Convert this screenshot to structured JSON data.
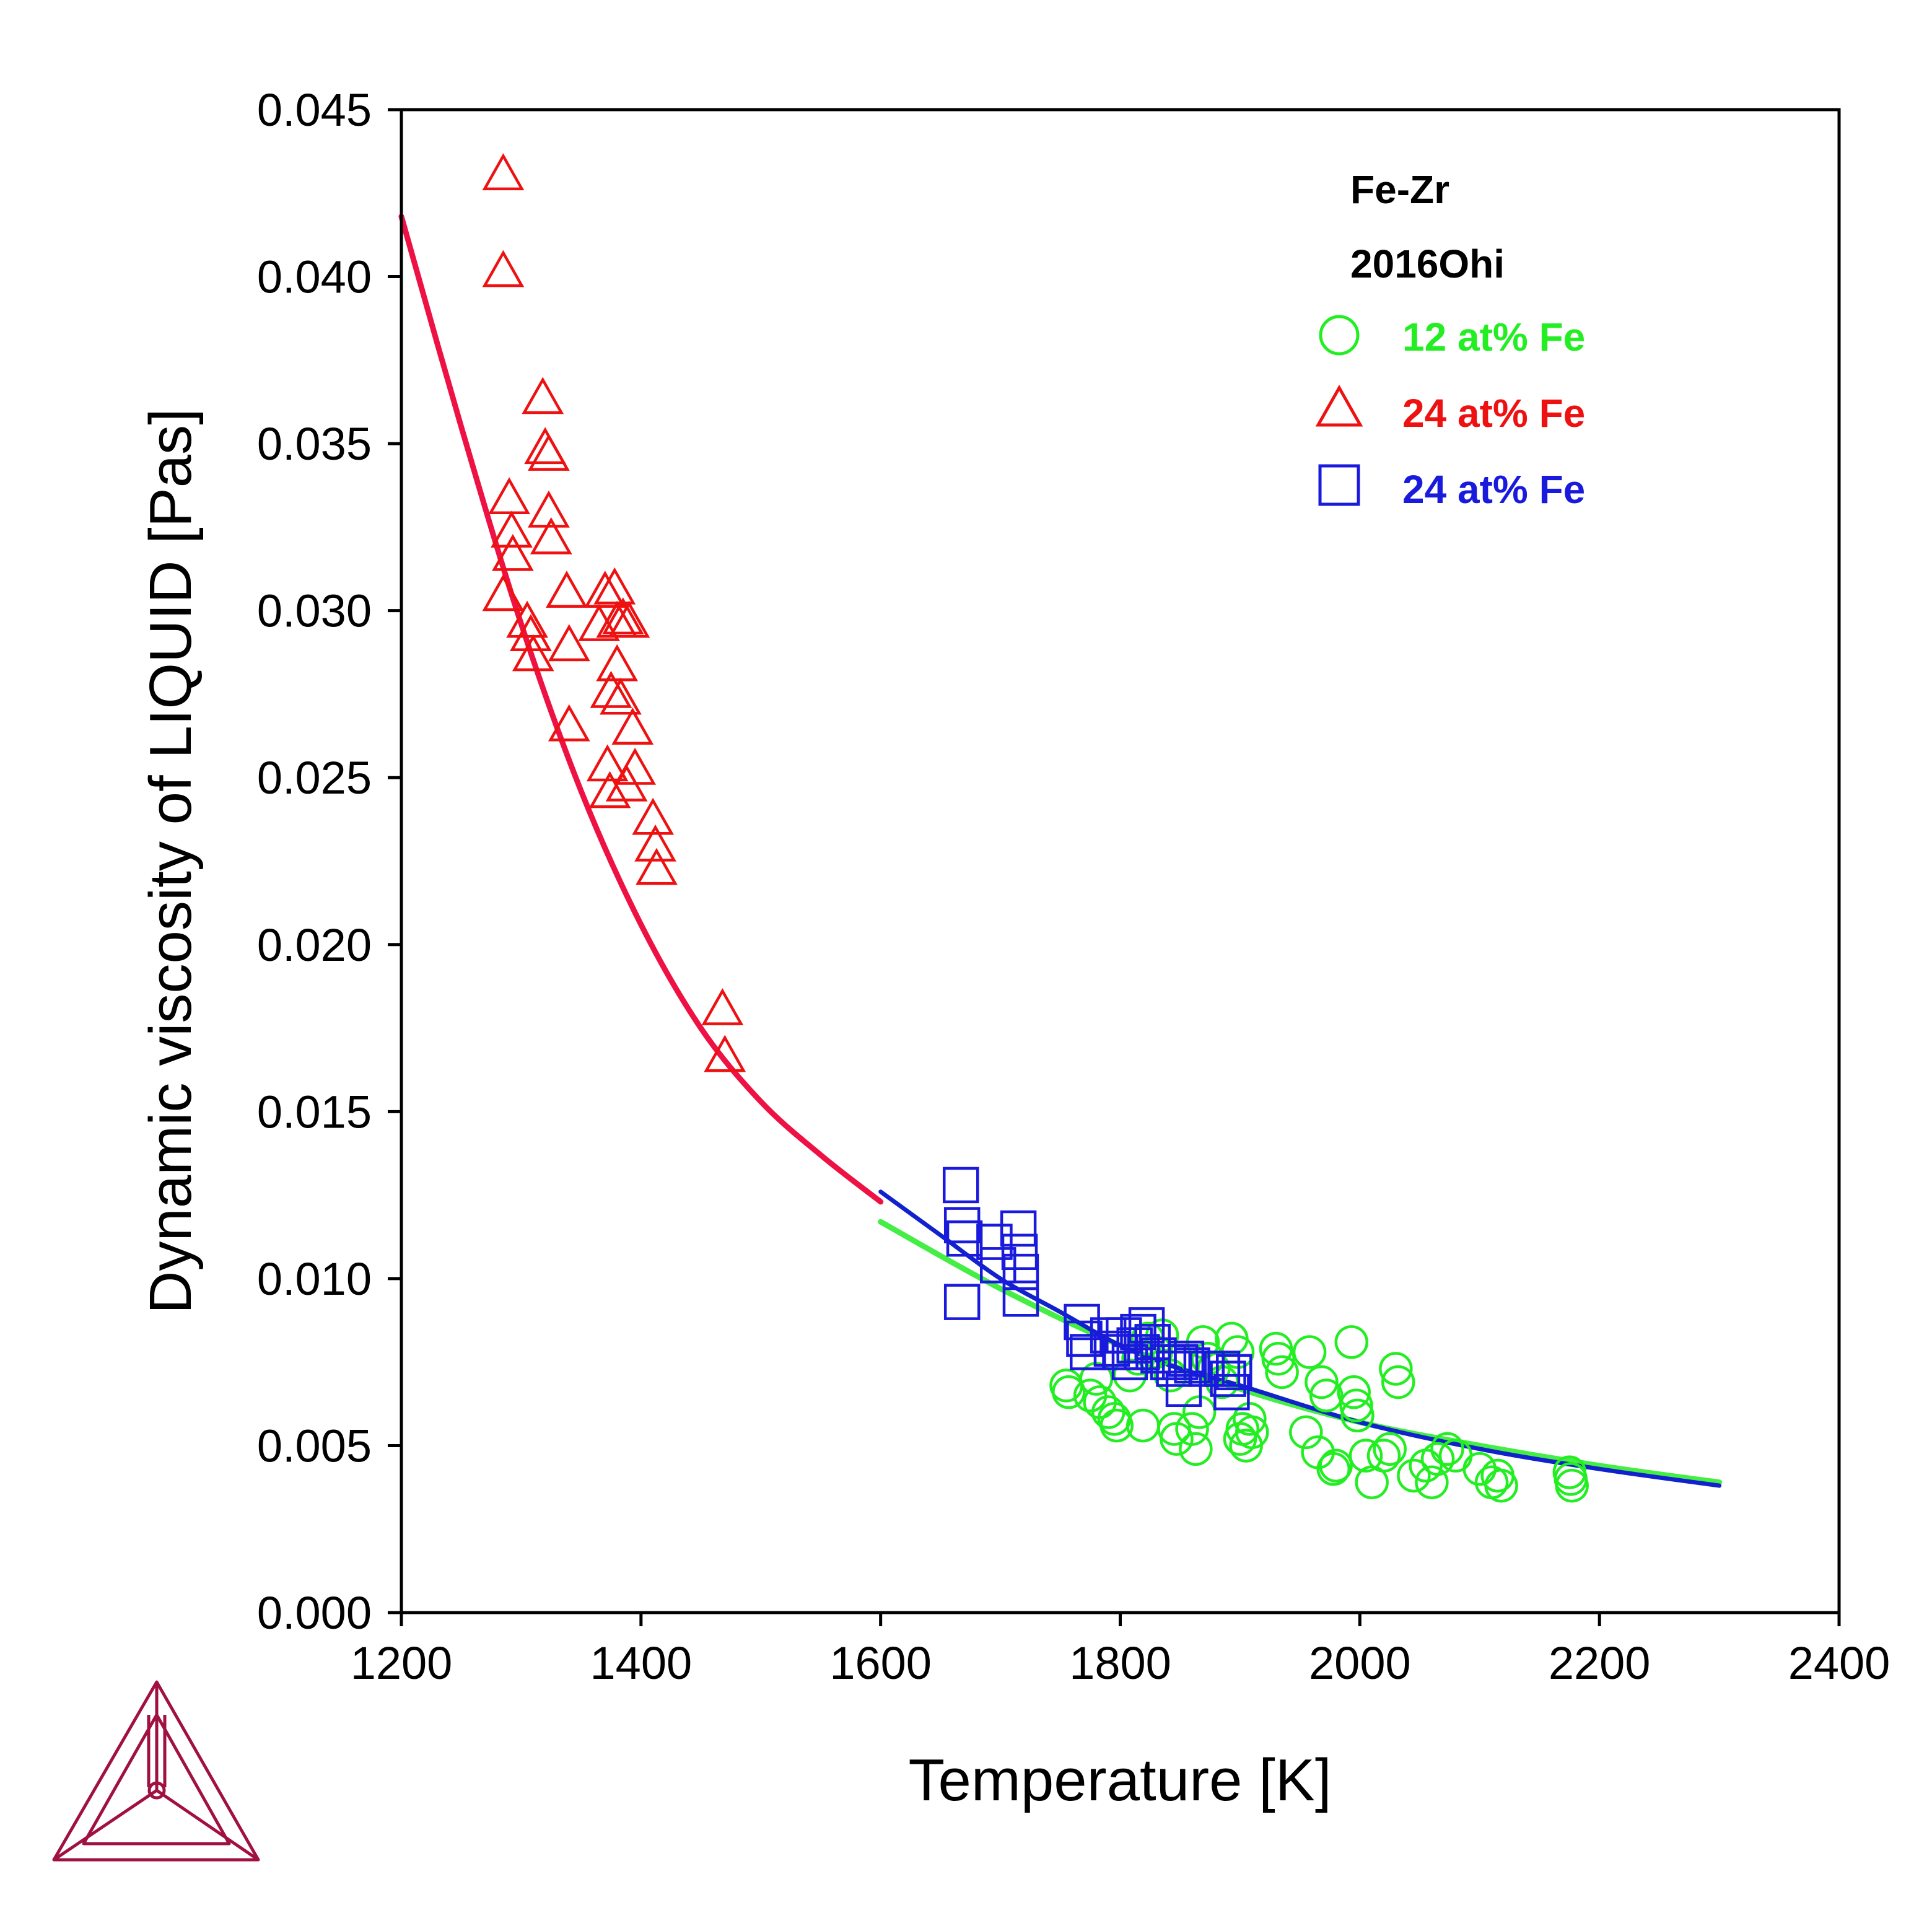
{
  "chart_data": {
    "type": "scatter",
    "xlabel": "Temperature [K]",
    "ylabel": "Dynamic viscosity of LIQUID [Pas]",
    "xlim": [
      1200,
      2400
    ],
    "ylim": [
      0,
      0.045
    ],
    "xticks": [
      "1200",
      "1400",
      "1600",
      "1800",
      "2000",
      "2200",
      "2400"
    ],
    "yticks": [
      "0.000",
      "0.005",
      "0.010",
      "0.015",
      "0.020",
      "0.025",
      "0.030",
      "0.035",
      "0.040",
      "0.045"
    ],
    "grid": false,
    "legend_position": "top-right",
    "legend_title": [
      "Fe-Zr",
      "2016Ohi"
    ],
    "series": [
      {
        "name": "12 at% Fe",
        "marker": "circle",
        "color": "#22ee22",
        "points": [
          [
            1755,
            0.0068
          ],
          [
            1757,
            0.0066
          ],
          [
            1775,
            0.0065
          ],
          [
            1780,
            0.007
          ],
          [
            1783,
            0.0063
          ],
          [
            1790,
            0.006
          ],
          [
            1795,
            0.0058
          ],
          [
            1797,
            0.0056
          ],
          [
            1808,
            0.0071
          ],
          [
            1815,
            0.0076
          ],
          [
            1819,
            0.0056
          ],
          [
            1823,
            0.0082
          ],
          [
            1830,
            0.0078
          ],
          [
            1835,
            0.0083
          ],
          [
            1842,
            0.0071
          ],
          [
            1845,
            0.0055
          ],
          [
            1847,
            0.0052
          ],
          [
            1860,
            0.0055
          ],
          [
            1863,
            0.0049
          ],
          [
            1866,
            0.006
          ],
          [
            1869,
            0.0081
          ],
          [
            1873,
            0.0076
          ],
          [
            1878,
            0.0073
          ],
          [
            1885,
            0.0069
          ],
          [
            1893,
            0.0082
          ],
          [
            1898,
            0.0078
          ],
          [
            1900,
            0.0052
          ],
          [
            1902,
            0.0055
          ],
          [
            1905,
            0.005
          ],
          [
            1908,
            0.0058
          ],
          [
            1910,
            0.0054
          ],
          [
            1930,
            0.0079
          ],
          [
            1932,
            0.0076
          ],
          [
            1935,
            0.0072
          ],
          [
            1955,
            0.0054
          ],
          [
            1958,
            0.0078
          ],
          [
            1965,
            0.0048
          ],
          [
            1968,
            0.0069
          ],
          [
            1972,
            0.0065
          ],
          [
            1978,
            0.0043
          ],
          [
            1980,
            0.0044
          ],
          [
            1993,
            0.0081
          ],
          [
            1995,
            0.0066
          ],
          [
            1997,
            0.0062
          ],
          [
            1998,
            0.0059
          ],
          [
            2005,
            0.0047
          ],
          [
            2010,
            0.0039
          ],
          [
            2020,
            0.0047
          ],
          [
            2025,
            0.0049
          ],
          [
            2030,
            0.0073
          ],
          [
            2032,
            0.0069
          ],
          [
            2045,
            0.0041
          ],
          [
            2055,
            0.0044
          ],
          [
            2060,
            0.0039
          ],
          [
            2065,
            0.0046
          ],
          [
            2073,
            0.0049
          ],
          [
            2080,
            0.0047
          ],
          [
            2100,
            0.0043
          ],
          [
            2110,
            0.0039
          ],
          [
            2115,
            0.0041
          ],
          [
            2118,
            0.0038
          ],
          [
            2175,
            0.0042
          ],
          [
            2176,
            0.004
          ],
          [
            2177,
            0.0038
          ]
        ]
      },
      {
        "name": "24 at% Fe",
        "marker": "triangle",
        "color": "#ee1111",
        "points": [
          [
            1285,
            0.043
          ],
          [
            1285,
            0.0401
          ],
          [
            1285,
            0.0304
          ],
          [
            1290,
            0.0333
          ],
          [
            1292,
            0.0323
          ],
          [
            1293,
            0.0316
          ],
          [
            1305,
            0.0296
          ],
          [
            1308,
            0.0292
          ],
          [
            1310,
            0.0286
          ],
          [
            1318,
            0.0363
          ],
          [
            1320,
            0.0348
          ],
          [
            1323,
            0.0346
          ],
          [
            1323,
            0.0329
          ],
          [
            1325,
            0.0321
          ],
          [
            1338,
            0.0305
          ],
          [
            1340,
            0.0289
          ],
          [
            1340,
            0.0265
          ],
          [
            1365,
            0.0295
          ],
          [
            1370,
            0.0305
          ],
          [
            1372,
            0.0253
          ],
          [
            1374,
            0.0245
          ],
          [
            1375,
            0.0275
          ],
          [
            1378,
            0.0306
          ],
          [
            1380,
            0.0296
          ],
          [
            1380,
            0.0283
          ],
          [
            1383,
            0.0273
          ],
          [
            1385,
            0.0297
          ],
          [
            1388,
            0.0247
          ],
          [
            1390,
            0.0296
          ],
          [
            1393,
            0.0264
          ],
          [
            1395,
            0.0252
          ],
          [
            1410,
            0.0237
          ],
          [
            1412,
            0.0229
          ],
          [
            1413,
            0.0222
          ],
          [
            1468,
            0.018
          ],
          [
            1470,
            0.0166
          ]
        ]
      },
      {
        "name": "24 at% Fe",
        "marker": "square",
        "color": "#1a1add",
        "points": [
          [
            1667,
            0.0128
          ],
          [
            1668,
            0.0116
          ],
          [
            1670,
            0.0112
          ],
          [
            1668,
            0.0093
          ],
          [
            1695,
            0.0111
          ],
          [
            1698,
            0.0104
          ],
          [
            1715,
            0.0115
          ],
          [
            1716,
            0.0108
          ],
          [
            1717,
            0.0102
          ],
          [
            1717,
            0.0094
          ],
          [
            1768,
            0.0087
          ],
          [
            1770,
            0.0082
          ],
          [
            1773,
            0.0078
          ],
          [
            1790,
            0.0083
          ],
          [
            1793,
            0.0079
          ],
          [
            1800,
            0.0078
          ],
          [
            1803,
            0.0083
          ],
          [
            1808,
            0.0075
          ],
          [
            1812,
            0.008
          ],
          [
            1815,
            0.0084
          ],
          [
            1818,
            0.0078
          ],
          [
            1822,
            0.0086
          ],
          [
            1827,
            0.0081
          ],
          [
            1832,
            0.0077
          ],
          [
            1840,
            0.0075
          ],
          [
            1845,
            0.0073
          ],
          [
            1850,
            0.0075
          ],
          [
            1853,
            0.0067
          ],
          [
            1855,
            0.0076
          ],
          [
            1860,
            0.0074
          ],
          [
            1872,
            0.0073
          ],
          [
            1885,
            0.0073
          ],
          [
            1890,
            0.007
          ],
          [
            1893,
            0.0066
          ],
          [
            1895,
            0.0072
          ]
        ]
      }
    ],
    "curves": [
      {
        "name": "24 at% Fe",
        "color": "#ee1144",
        "x": [
          1200,
          1250,
          1300,
          1350,
          1400,
          1450,
          1500,
          1550,
          1600
        ],
        "y": [
          0.0418,
          0.0355,
          0.0296,
          0.0246,
          0.0206,
          0.0175,
          0.0153,
          0.0137,
          0.0123
        ]
      },
      {
        "name": "12 at% Fe",
        "color": "#44ee44",
        "x": [
          1600,
          1700,
          1800,
          1900,
          2000,
          2100,
          2200,
          2300
        ],
        "y": [
          0.0117,
          0.0097,
          0.008,
          0.0067,
          0.0057,
          0.005,
          0.0044,
          0.0039
        ]
      },
      {
        "name": "24 at% Fe",
        "color": "#1122cc",
        "x": [
          1600,
          1650,
          1700,
          1750,
          1800,
          1850,
          1900,
          2000,
          2100,
          2200,
          2300
        ],
        "y": [
          0.0126,
          0.0113,
          0.01,
          0.009,
          0.008,
          0.0073,
          0.0068,
          0.0057,
          0.0049,
          0.0043,
          0.0038
        ]
      }
    ]
  },
  "logo": {
    "name": "thermo-calc-logo",
    "color": "#a01040"
  }
}
